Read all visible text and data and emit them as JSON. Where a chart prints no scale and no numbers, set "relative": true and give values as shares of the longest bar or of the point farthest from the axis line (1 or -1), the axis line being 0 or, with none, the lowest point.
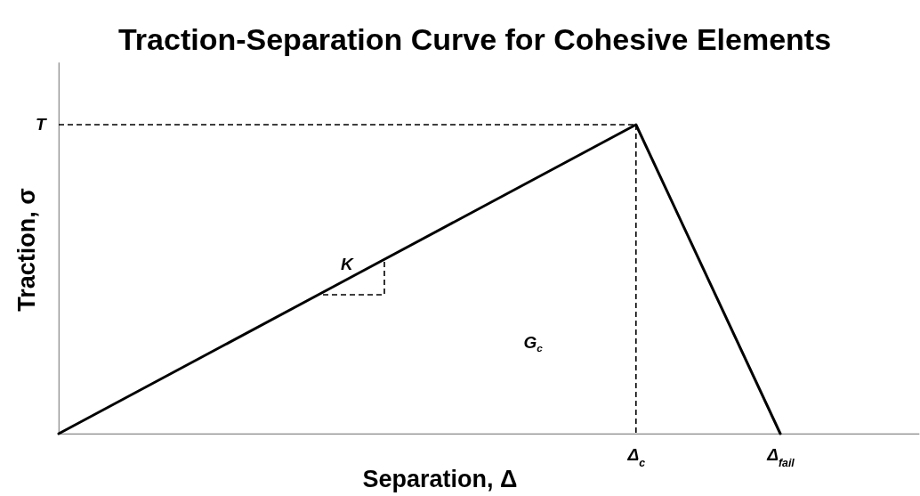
{
  "chart_data": {
    "type": "line",
    "title": "Traction-Separation Curve  for Cohesive Elements",
    "xlabel": "Separation, Δ",
    "ylabel": "Traction, σ",
    "relative": true,
    "categories": [
      null,
      null,
      null,
      null,
      "Δ$_{c}$",
      "Δ$_{fail}$"
    ],
    "series": [
      {
        "type": "line",
        "color": "#000000",
        "line_style": "solid",
        "values": [
          0,
          0.25,
          0.5,
          0.75,
          1,
          0
        ]
      },
      {
        "type": "line",
        "color": "#000000",
        "line_style": "dashed",
        "values": [
          1,
          1,
          1,
          1,
          1,
          null
        ]
      },
      {
        "type": "line",
        "color": "#000000",
        "line_style": "dashed",
        "x": [
          "Δ$_{c}$",
          "Δ$_{c}$"
        ],
        "values": [
          1,
          0
        ]
      }
    ],
    "annotations": [
      "T",
      "K",
      "G$_{c}$"
    ]
  }
}
